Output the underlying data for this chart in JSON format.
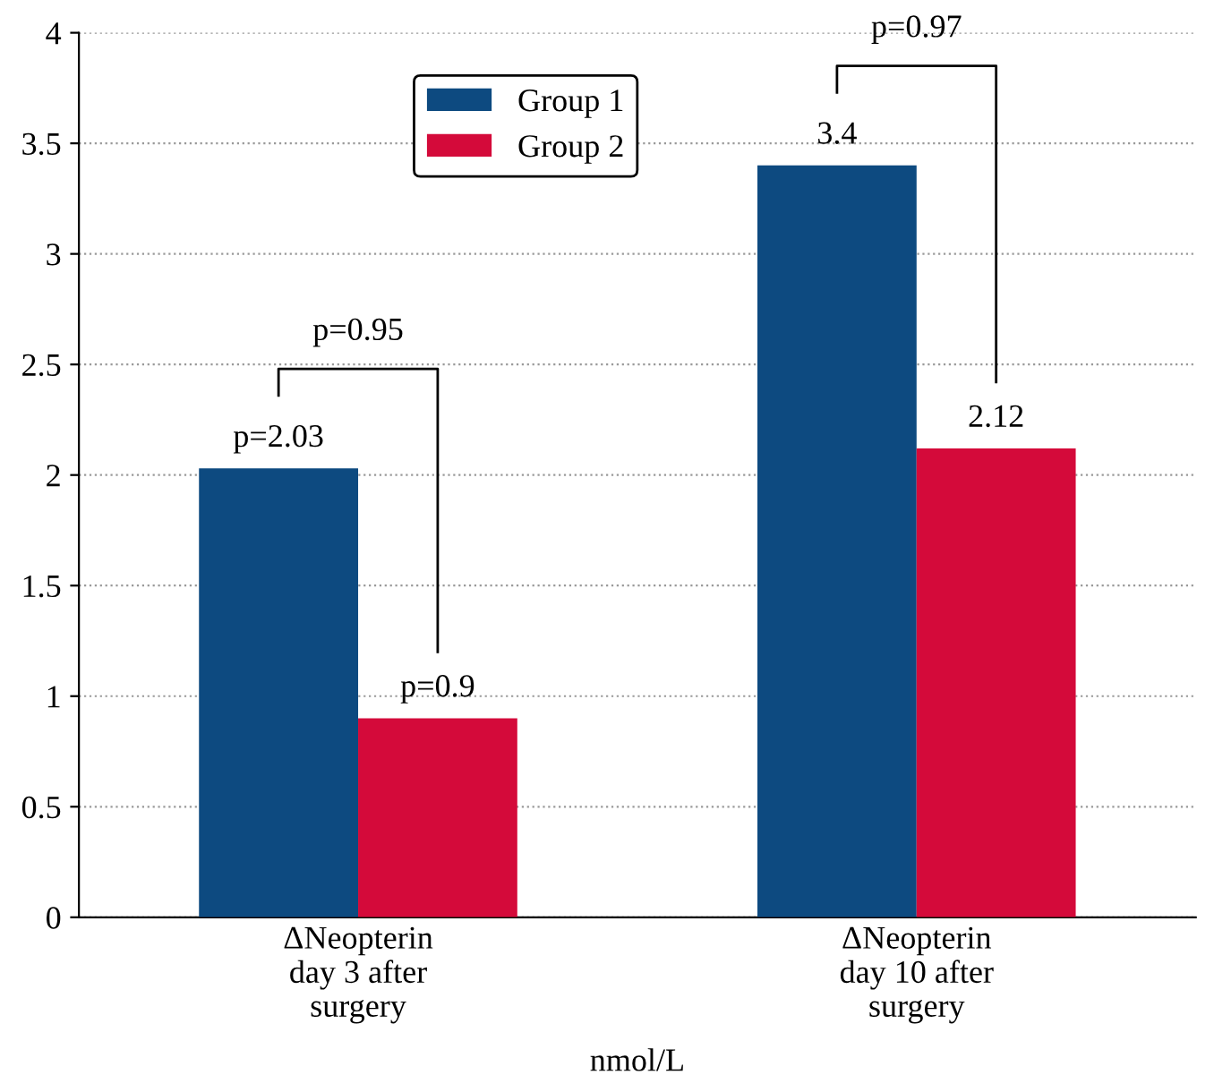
{
  "chart_data": {
    "type": "bar",
    "xlabel": "nmol/L",
    "categories": [
      "ΔNeopterin\nday 3 after\nsurgery",
      "ΔNeopterin\nday 10 after\nsurgery"
    ],
    "series": [
      {
        "name": "Group 1",
        "color": "#0d4a80",
        "values": [
          2.03,
          3.4
        ],
        "value_labels": [
          "p=2.03",
          "3.4"
        ]
      },
      {
        "name": "Group 2",
        "color": "#d40a3a",
        "values": [
          0.9,
          2.12
        ],
        "value_labels": [
          "p=0.9",
          "2.12"
        ]
      }
    ],
    "annotations": [
      "p=0.95",
      "p=0.97"
    ],
    "ylim": [
      0,
      4
    ],
    "yticks": [
      0,
      0.5,
      1,
      1.5,
      2,
      2.5,
      3,
      3.5,
      4
    ],
    "grid": "y",
    "legend": "top"
  }
}
